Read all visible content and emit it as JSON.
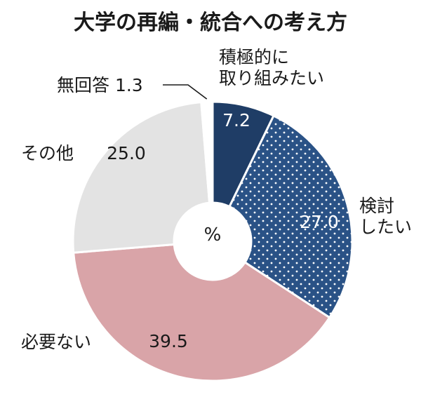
{
  "chart_data": {
    "type": "pie",
    "title": "大学の再編・統合への考え方",
    "unit": "%",
    "slices": [
      {
        "label_lines": [
          "積極的に",
          "取り組みたい"
        ],
        "value": 7.2,
        "value_text": "7.2",
        "color": "#1f3d66",
        "pattern": "none"
      },
      {
        "label_lines": [
          "検討",
          "したい"
        ],
        "value": 27.0,
        "value_text": "27.0",
        "color": "#2a5286",
        "pattern": "dots"
      },
      {
        "label_lines": [
          "必要ない"
        ],
        "value": 39.5,
        "value_text": "39.5",
        "color": "#d9a4a8",
        "pattern": "none"
      },
      {
        "label_lines": [
          "その他"
        ],
        "value": 25.0,
        "value_text": "25.0",
        "color": "#e3e3e3",
        "pattern": "none"
      },
      {
        "label_lines": [
          "無回答 1.3"
        ],
        "value": 1.3,
        "value_text": "",
        "color": "#ffffff",
        "pattern": "none"
      }
    ]
  }
}
